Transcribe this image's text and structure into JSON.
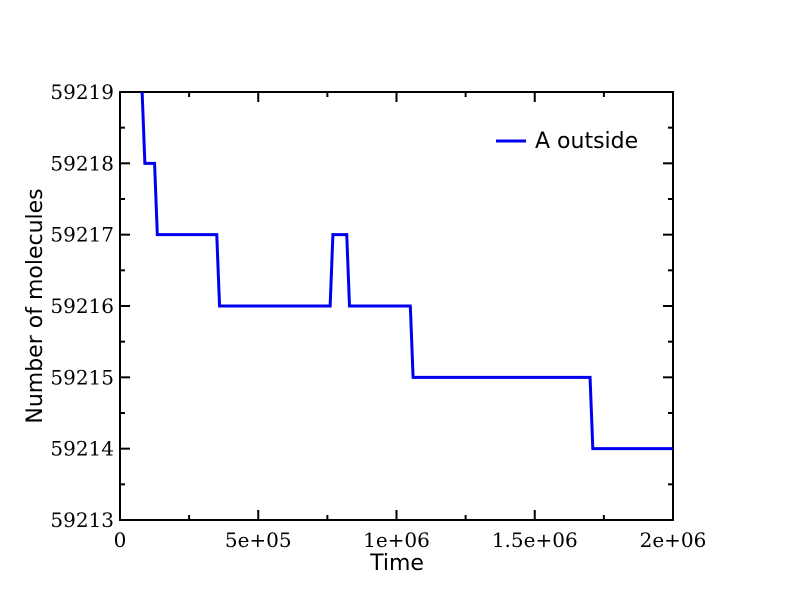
{
  "chart_data": {
    "type": "line",
    "title": "",
    "xlabel": "Time",
    "ylabel": "Number of molecules",
    "xlim": [
      0,
      2000000
    ],
    "ylim": [
      59213,
      59219
    ],
    "x_ticks": [
      0,
      500000,
      1000000,
      1500000,
      2000000
    ],
    "x_tick_labels": [
      "0",
      "5e+05",
      "1e+06",
      "1.5e+06",
      "2e+06"
    ],
    "y_ticks": [
      59213,
      59214,
      59215,
      59216,
      59217,
      59218,
      59219
    ],
    "y_tick_labels": [
      "59213",
      "59214",
      "59215",
      "59216",
      "59217",
      "59218",
      "59219"
    ],
    "grid": false,
    "legend_position": "top-right",
    "series": [
      {
        "name": "A outside",
        "color": "#0000ee",
        "points": [
          [
            80000,
            59219
          ],
          [
            90000,
            59218
          ],
          [
            125000,
            59218
          ],
          [
            135000,
            59217
          ],
          [
            350000,
            59217
          ],
          [
            360000,
            59216
          ],
          [
            760000,
            59216
          ],
          [
            770000,
            59217
          ],
          [
            820000,
            59217
          ],
          [
            830000,
            59216
          ],
          [
            1050000,
            59216
          ],
          [
            1060000,
            59215
          ],
          [
            1700000,
            59215
          ],
          [
            1710000,
            59214
          ],
          [
            2000000,
            59214
          ]
        ]
      }
    ]
  }
}
